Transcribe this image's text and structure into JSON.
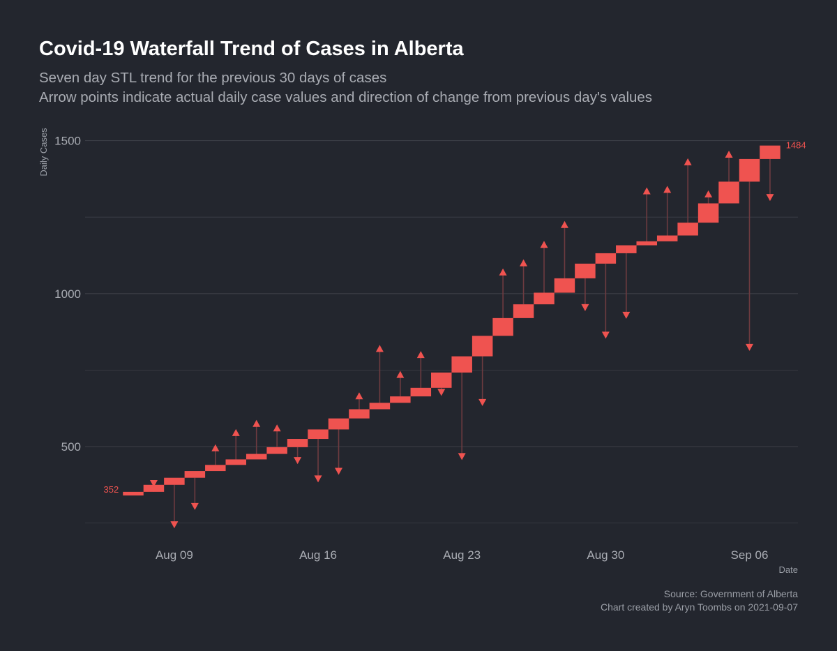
{
  "colors": {
    "background": "#23262e",
    "bar": "#ef5350",
    "arrow_head": "#ef5350",
    "arrow_stem": "#6e3b40",
    "grid": "#3c3f47"
  },
  "chart_data": {
    "type": "waterfall",
    "title": "Covid-19 Waterfall Trend of Cases in Alberta",
    "subtitle_lines": [
      "Seven day STL trend for the previous 30 days of cases",
      "Arrow points indicate actual daily case values and direction of change from previous day's values"
    ],
    "xlabel": "Date",
    "ylabel": "Daily Cases",
    "y_ticks": [
      500,
      1000,
      1500
    ],
    "x_ticks": [
      "Aug 09",
      "Aug 16",
      "Aug 23",
      "Aug 30",
      "Sep 06"
    ],
    "x_tick_day_index": [
      2,
      9,
      16,
      23,
      30
    ],
    "ylim": [
      225,
      1580
    ],
    "start_label": "352",
    "end_label": "1484",
    "caption_lines": [
      "Source: Government of Alberta",
      "Chart created by Aryn Toombs on 2021-09-07"
    ],
    "dates": [
      "Aug 07",
      "Aug 08",
      "Aug 09",
      "Aug 10",
      "Aug 11",
      "Aug 12",
      "Aug 13",
      "Aug 14",
      "Aug 15",
      "Aug 16",
      "Aug 17",
      "Aug 18",
      "Aug 19",
      "Aug 20",
      "Aug 21",
      "Aug 22",
      "Aug 23",
      "Aug 24",
      "Aug 25",
      "Aug 26",
      "Aug 27",
      "Aug 28",
      "Aug 29",
      "Aug 30",
      "Aug 31",
      "Sep 01",
      "Sep 02",
      "Sep 03",
      "Sep 04",
      "Sep 05",
      "Sep 06",
      "Sep 07"
    ],
    "trend": [
      352,
      375,
      398,
      420,
      440,
      458,
      476,
      498,
      525,
      556,
      592,
      622,
      643,
      664,
      692,
      742,
      795,
      862,
      920,
      965,
      1003,
      1050,
      1098,
      1132,
      1158,
      1171,
      1190,
      1232,
      1295,
      1366,
      1440,
      1484
    ],
    "actual": [
      null,
      370,
      235,
      295,
      505,
      555,
      585,
      570,
      445,
      385,
      410,
      675,
      830,
      745,
      810,
      668,
      458,
      635,
      1080,
      1110,
      1170,
      1235,
      945,
      855,
      920,
      1345,
      1350,
      1440,
      1335,
      1465,
      815,
      1305
    ]
  }
}
